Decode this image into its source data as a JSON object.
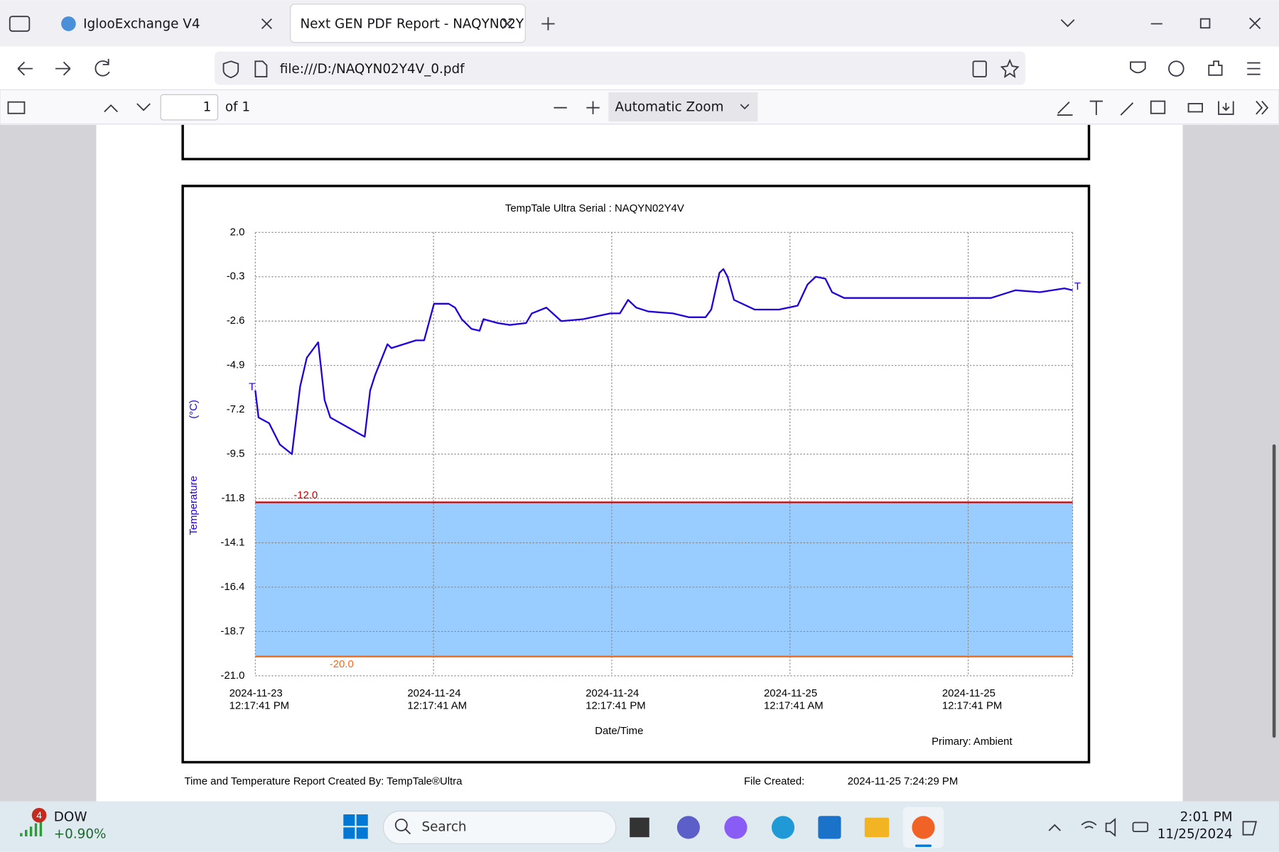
{
  "browser": {
    "tabs": [
      "IglooExchange V4",
      "Next GEN PDF Report - NAQYN02Y"
    ],
    "url": "file:///D:/NAQYN02Y4V_0.pdf",
    "pdf_toolbar": {
      "page": 1,
      "page_count": "of 1",
      "zoom": "Automatic Zoom"
    }
  },
  "chart_data": {
    "type": "line",
    "title": "TempTale Ultra  Serial : NAQYN02Y4V",
    "y_label": "Temperature",
    "y_unit": "(°C)",
    "x_label": "Date/Time",
    "note": "Primary: Ambient",
    "x": [
      "2024-11-23T12:17:41",
      "2024-11-23T12:30:41",
      "2024-11-23T13:13:41",
      "2024-11-23T13:56:41",
      "2024-11-23T14:45:41",
      "2024-11-23T15:18:41",
      "2024-11-23T15:45:41",
      "2024-11-23T16:31:41",
      "2024-11-23T16:57:41",
      "2024-11-23T17:20:41",
      "2024-11-23T19:39:41",
      "2024-11-23T20:01:41",
      "2024-11-23T20:21:41",
      "2024-11-23T21:11:41",
      "2024-11-23T21:27:41",
      "2024-11-23T23:06:41",
      "2024-11-23T23:39:41",
      "2024-11-24T00:19:41",
      "2024-11-24T01:18:41",
      "2024-11-24T01:44:41",
      "2024-11-24T02:11:41",
      "2024-11-24T02:50:41",
      "2024-11-24T03:23:41",
      "2024-11-24T03:39:41",
      "2024-11-24T04:36:41",
      "2024-11-24T05:25:41",
      "2024-11-24T06:31:41",
      "2024-11-24T06:54:41",
      "2024-11-24T07:53:41",
      "2024-11-24T08:53:41",
      "2024-11-24T10:22:41",
      "2024-11-24T12:11:41",
      "2024-11-24T12:50:41",
      "2024-11-24T13:23:41",
      "2024-11-24T13:56:41",
      "2024-11-24T14:45:41",
      "2024-11-24T16:24:41",
      "2024-11-24T17:30:41",
      "2024-11-24T18:36:41",
      "2024-11-24T18:59:41",
      "2024-11-24T19:32:41",
      "2024-11-24T19:48:41",
      "2024-11-24T20:05:41",
      "2024-11-24T20:31:41",
      "2024-11-24T21:54:41",
      "2024-11-24T23:33:41",
      "2024-11-25T00:48:41",
      "2024-11-25T01:28:41",
      "2024-11-25T02:01:41",
      "2024-11-25T02:40:41",
      "2024-11-25T03:07:41",
      "2024-11-25T03:56:41",
      "2024-11-25T08:20:41",
      "2024-11-25T13:49:41",
      "2024-11-25T15:28:41",
      "2024-11-25T17:07:41",
      "2024-11-25T18:46:41",
      "2024-11-25T19:19:41"
    ],
    "values": [
      -6.2,
      -7.6,
      -7.9,
      -9.0,
      -9.5,
      -6.0,
      -4.5,
      -3.7,
      -6.7,
      -7.6,
      -8.6,
      -6.2,
      -5.4,
      -3.8,
      -4.0,
      -3.6,
      -3.6,
      -1.7,
      -1.7,
      -1.9,
      -2.5,
      -3.0,
      -3.1,
      -2.5,
      -2.7,
      -2.8,
      -2.7,
      -2.2,
      -1.9,
      -2.6,
      -2.5,
      -2.2,
      -2.2,
      -1.5,
      -1.9,
      -2.1,
      -2.2,
      -2.4,
      -2.4,
      -2.0,
      -0.1,
      0.1,
      -0.3,
      -1.5,
      -2.0,
      -2.0,
      -1.8,
      -0.7,
      -0.3,
      -0.4,
      -1.1,
      -1.4,
      -1.4,
      -1.4,
      -1.0,
      -1.1,
      -0.9,
      -1.0
    ],
    "color": "#2200dd",
    "first_point_label": "T",
    "last_point_label": "T",
    "xlim": [
      "2024-11-23T12:17:41",
      "2024-11-25T19:19:41"
    ],
    "xticks": [
      {
        "value": "2024-11-23T12:17:41",
        "label": [
          "2024-11-23",
          "12:17:41 PM"
        ]
      },
      {
        "value": "2024-11-24T00:17:41",
        "label": [
          "2024-11-24",
          "12:17:41 AM"
        ]
      },
      {
        "value": "2024-11-24T12:17:41",
        "label": [
          "2024-11-24",
          "12:17:41 PM"
        ]
      },
      {
        "value": "2024-11-25T00:17:41",
        "label": [
          "2024-11-25",
          "12:17:41 AM"
        ]
      },
      {
        "value": "2024-11-25T12:17:41",
        "label": [
          "2024-11-25",
          "12:17:41 PM"
        ]
      }
    ],
    "ylim": [
      -21,
      2
    ],
    "yticks": [
      {
        "value": 2,
        "label": "2.0"
      },
      -0.3,
      -2.6,
      -4.9,
      -7.2,
      -9.5,
      -11.8,
      -14.1,
      -16.4,
      -18.7,
      {
        "value": -21,
        "label": "-21.0"
      }
    ],
    "grid": true,
    "limits": [
      {
        "value": -12,
        "label": "-12.0",
        "color": "#cc0000"
      },
      {
        "value": -20,
        "label": "-20.0",
        "color": "#f06a1e"
      }
    ],
    "band_color": "#99ccff"
  },
  "report_footer": {
    "created_by": "Time and Temperature Report Created By:  TempTale®Ultra",
    "file_created_label": "File Created:",
    "file_created": "2024-11-25  7:24:29 PM"
  },
  "taskbar": {
    "badge": "4",
    "ticker": "DOW",
    "change": "+0.90%",
    "search": "Search",
    "time": "2:01 PM",
    "date": "11/25/2024"
  }
}
